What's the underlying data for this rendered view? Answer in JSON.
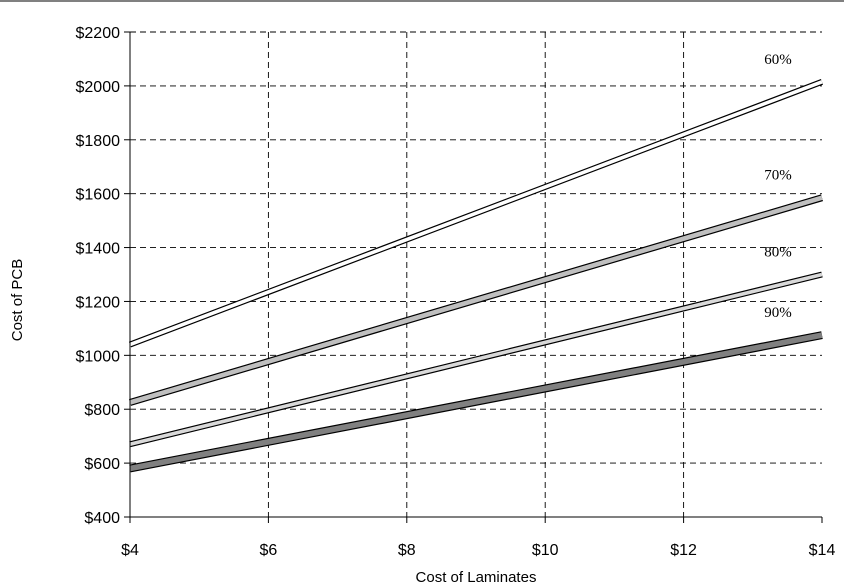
{
  "chart_data": {
    "type": "line",
    "title": "",
    "xlabel": "Cost of Laminates",
    "ylabel": "Cost of PCB",
    "x": [
      4,
      14
    ],
    "xlim": [
      4,
      14
    ],
    "ylim": [
      400,
      2200
    ],
    "x_ticks": [
      4,
      6,
      8,
      10,
      12,
      14
    ],
    "x_tick_labels": [
      "$4",
      "$6",
      "$8",
      "$10",
      "$12",
      "$14"
    ],
    "y_ticks": [
      400,
      600,
      800,
      1000,
      1200,
      1400,
      1600,
      1800,
      2000,
      2200
    ],
    "y_tick_labels": [
      "$400",
      "$600",
      "$800",
      "$1000",
      "$1200",
      "$1400",
      "$1600",
      "$1800",
      "$2000",
      "$2200"
    ],
    "grid": true,
    "series": [
      {
        "name": "60%",
        "x": [
          4,
          14
        ],
        "values": [
          1040,
          2015
        ],
        "color": "#ffffff",
        "outline": "#000000"
      },
      {
        "name": "70%",
        "x": [
          4,
          14
        ],
        "values": [
          825,
          1585
        ],
        "color": "#bfbfbf",
        "outline": "#000000"
      },
      {
        "name": "80%",
        "x": [
          4,
          14
        ],
        "values": [
          670,
          1300
        ],
        "color": "#d9d9d9",
        "outline": "#000000"
      },
      {
        "name": "90%",
        "x": [
          4,
          14
        ],
        "values": [
          580,
          1075
        ],
        "color": "#808080",
        "outline": "#000000"
      }
    ]
  }
}
